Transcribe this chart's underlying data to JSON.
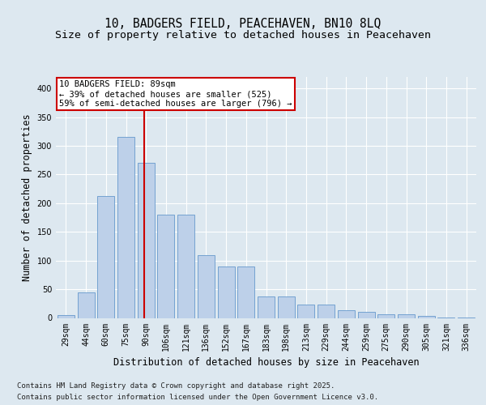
{
  "title_line1": "10, BADGERS FIELD, PEACEHAVEN, BN10 8LQ",
  "title_line2": "Size of property relative to detached houses in Peacehaven",
  "xlabel": "Distribution of detached houses by size in Peacehaven",
  "ylabel": "Number of detached properties",
  "categories": [
    "29sqm",
    "44sqm",
    "60sqm",
    "75sqm",
    "90sqm",
    "106sqm",
    "121sqm",
    "136sqm",
    "152sqm",
    "167sqm",
    "183sqm",
    "198sqm",
    "213sqm",
    "229sqm",
    "244sqm",
    "259sqm",
    "275sqm",
    "290sqm",
    "305sqm",
    "321sqm",
    "336sqm"
  ],
  "values": [
    5,
    44,
    213,
    315,
    270,
    180,
    180,
    110,
    90,
    90,
    38,
    38,
    23,
    24,
    13,
    10,
    6,
    6,
    3,
    1,
    1
  ],
  "bar_color": "#bdd0e9",
  "bar_edge_color": "#6699cc",
  "vline_color": "#cc0000",
  "vline_x": 3.93,
  "annotation_text": "10 BADGERS FIELD: 89sqm\n← 39% of detached houses are smaller (525)\n59% of semi-detached houses are larger (796) →",
  "annotation_box_facecolor": "#ffffff",
  "annotation_box_edgecolor": "#cc0000",
  "footer_line1": "Contains HM Land Registry data © Crown copyright and database right 2025.",
  "footer_line2": "Contains public sector information licensed under the Open Government Licence v3.0.",
  "ylim": [
    0,
    420
  ],
  "bg_color": "#dde8f0",
  "grid_color": "#ffffff",
  "title_fontsize": 10.5,
  "subtitle_fontsize": 9.5,
  "ylabel_fontsize": 8.5,
  "xlabel_fontsize": 8.5,
  "tick_fontsize": 7,
  "annot_fontsize": 7.5,
  "footer_fontsize": 6.5
}
